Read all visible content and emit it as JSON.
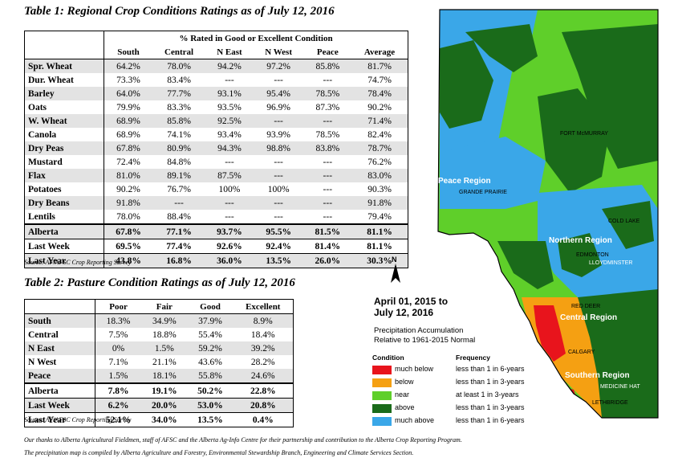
{
  "table1": {
    "title": "Table 1: Regional Crop Conditions Ratings as of July 12, 2016",
    "group_header": "% Rated in Good or Excellent Condition",
    "columns": [
      "South",
      "Central",
      "N East",
      "N West",
      "Peace",
      "Average"
    ],
    "rows": [
      {
        "label": "Spr. Wheat",
        "values": [
          "64.2%",
          "78.0%",
          "94.2%",
          "97.2%",
          "85.8%",
          "81.7%"
        ]
      },
      {
        "label": "Dur. Wheat",
        "values": [
          "73.3%",
          "83.4%",
          "---",
          "---",
          "---",
          "74.7%"
        ]
      },
      {
        "label": "Barley",
        "values": [
          "64.0%",
          "77.7%",
          "93.1%",
          "95.4%",
          "78.5%",
          "78.4%"
        ]
      },
      {
        "label": "Oats",
        "values": [
          "79.9%",
          "83.3%",
          "93.5%",
          "96.9%",
          "87.3%",
          "90.2%"
        ]
      },
      {
        "label": "W. Wheat",
        "values": [
          "68.9%",
          "85.8%",
          "92.5%",
          "---",
          "---",
          "71.4%"
        ]
      },
      {
        "label": "Canola",
        "values": [
          "68.9%",
          "74.1%",
          "93.4%",
          "93.9%",
          "78.5%",
          "82.4%"
        ]
      },
      {
        "label": "Dry Peas",
        "values": [
          "67.8%",
          "80.9%",
          "94.3%",
          "98.8%",
          "83.8%",
          "78.7%"
        ]
      },
      {
        "label": "Mustard",
        "values": [
          "72.4%",
          "84.8%",
          "---",
          "---",
          "---",
          "76.2%"
        ]
      },
      {
        "label": "Flax",
        "values": [
          "81.0%",
          "89.1%",
          "87.5%",
          "---",
          "---",
          "83.0%"
        ]
      },
      {
        "label": "Potatoes",
        "values": [
          "90.2%",
          "76.7%",
          "100%",
          "100%",
          "---",
          "90.3%"
        ]
      },
      {
        "label": "Dry Beans",
        "values": [
          "91.8%",
          "---",
          "---",
          "---",
          "---",
          "91.8%"
        ]
      },
      {
        "label": "Lentils",
        "values": [
          "78.0%",
          "88.4%",
          "---",
          "---",
          "---",
          "79.4%"
        ]
      },
      {
        "label": "Alberta",
        "values": [
          "67.8%",
          "77.1%",
          "93.7%",
          "95.5%",
          "81.5%",
          "81.1%"
        ]
      },
      {
        "label": "Last Week",
        "values": [
          "69.5%",
          "77.4%",
          "92.6%",
          "92.4%",
          "81.4%",
          "81.1%"
        ]
      },
      {
        "label": "Last Year",
        "values": [
          "43.8%",
          "16.8%",
          "36.0%",
          "13.5%",
          "26.0%",
          "30.3%"
        ]
      }
    ],
    "source": "Source: AF/AFSC Crop Reporting Survey"
  },
  "table2": {
    "title": "Table 2: Pasture Condition Ratings as of July 12, 2016",
    "columns": [
      "Poor",
      "Fair",
      "Good",
      "Excellent"
    ],
    "rows": [
      {
        "label": "South",
        "values": [
          "18.3%",
          "34.9%",
          "37.9%",
          "8.9%"
        ]
      },
      {
        "label": "Central",
        "values": [
          "7.5%",
          "18.8%",
          "55.4%",
          "18.4%"
        ]
      },
      {
        "label": "N East",
        "values": [
          "0%",
          "1.5%",
          "59.2%",
          "39.2%"
        ]
      },
      {
        "label": "N West",
        "values": [
          "7.1%",
          "21.1%",
          "43.6%",
          "28.2%"
        ]
      },
      {
        "label": "Peace",
        "values": [
          "1.5%",
          "18.1%",
          "55.8%",
          "24.6%"
        ]
      },
      {
        "label": "Alberta",
        "values": [
          "7.8%",
          "19.1%",
          "50.2%",
          "22.8%"
        ]
      },
      {
        "label": "Last Week",
        "values": [
          "6.2%",
          "20.0%",
          "53.0%",
          "20.8%"
        ]
      },
      {
        "label": "Last Year",
        "values": [
          "52.1%",
          "34.0%",
          "13.5%",
          "0.4%"
        ]
      }
    ],
    "source": "Source: AF/AFSC Crop Reporting Survey"
  },
  "footnotes": [
    "Our thanks to Alberta Agricultural Fieldmen, staff of AFSC and the Alberta Ag-Info Centre for their partnership and contribution to the Alberta Crop Reporting Program.",
    "The precipitation map is compiled by Alberta Agriculture and Forestry, Environmental Stewardship Branch, Engineering and Climate Services Section."
  ],
  "map": {
    "date_line1": "April 01, 2015 to",
    "date_line2": "July 12, 2016",
    "subtitle_line1": "Precipitation Accumulation",
    "subtitle_line2": "Relative to 1961-2015 Normal",
    "legend_col1": "Condition",
    "legend_col2": "Frequency",
    "north_label": "N",
    "legend": [
      {
        "label": "much below",
        "freq": "less than 1 in 6-years",
        "color": "#e8141c"
      },
      {
        "label": "below",
        "freq": "less than 1 in 3-years",
        "color": "#f5a012"
      },
      {
        "label": "near",
        "freq": "at least 1 in 3-years",
        "color": "#5fcf2a"
      },
      {
        "label": "above",
        "freq": "less than 1 in 3-years",
        "color": "#1a6b1a"
      },
      {
        "label": "much above",
        "freq": "less than 1 in 6-years",
        "color": "#3aa7e8"
      }
    ],
    "regions": [
      "Peace Region",
      "Northern Region",
      "Central Region",
      "Southern Region"
    ],
    "cities": [
      "FORT McMURRAY",
      "GRANDE PRAIRIE",
      "COLD LAKE",
      "EDMONTON",
      "LLOYDMINSTER",
      "RED DEER",
      "CALGARY",
      "MEDICINE HAT",
      "LETHBRIDGE"
    ]
  }
}
